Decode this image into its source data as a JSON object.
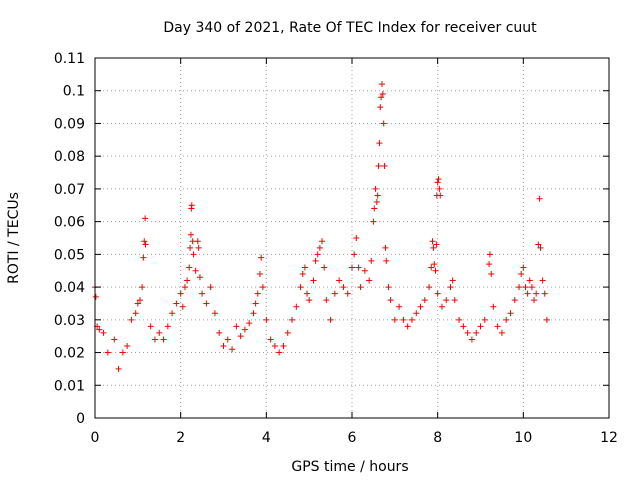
{
  "chart_data": {
    "type": "scatter",
    "title": "Day 340 of 2021, Rate Of TEC Index for receiver cuut",
    "xlabel": "GPS time / hours",
    "ylabel": "ROTI / TECUs",
    "xlim": [
      0,
      12
    ],
    "ylim": [
      0,
      0.11
    ],
    "xticks": [
      0,
      2,
      4,
      6,
      8,
      10,
      12
    ],
    "xtick_labels": [
      "0",
      "2",
      "4",
      "6",
      "8",
      "10",
      "12"
    ],
    "yticks": [
      0,
      0.01,
      0.02,
      0.03,
      0.04,
      0.05,
      0.06,
      0.07,
      0.08,
      0.09,
      0.1,
      0.11
    ],
    "ytick_labels": [
      "0",
      "0.01",
      "0.02",
      "0.03",
      "0.04",
      "0.05",
      "0.06",
      "0.07",
      "0.08",
      "0.09",
      "0.1",
      "0.11"
    ],
    "grid": true,
    "marker": "+",
    "color": "#ff0000",
    "series": [
      {
        "name": "ROTI",
        "points": [
          [
            0.0,
            0.04
          ],
          [
            0.02,
            0.037
          ],
          [
            0.05,
            0.028
          ],
          [
            0.1,
            0.027
          ],
          [
            0.2,
            0.026
          ],
          [
            0.3,
            0.02
          ],
          [
            0.45,
            0.024
          ],
          [
            0.55,
            0.015
          ],
          [
            0.65,
            0.02
          ],
          [
            0.75,
            0.022
          ],
          [
            0.85,
            0.03
          ],
          [
            0.95,
            0.032
          ],
          [
            1.0,
            0.035
          ],
          [
            1.05,
            0.036
          ],
          [
            1.1,
            0.04
          ],
          [
            1.13,
            0.049
          ],
          [
            1.15,
            0.054
          ],
          [
            1.17,
            0.061
          ],
          [
            1.18,
            0.053
          ],
          [
            1.3,
            0.028
          ],
          [
            1.4,
            0.024
          ],
          [
            1.5,
            0.026
          ],
          [
            1.6,
            0.024
          ],
          [
            1.7,
            0.028
          ],
          [
            1.8,
            0.032
          ],
          [
            1.9,
            0.035
          ],
          [
            2.0,
            0.038
          ],
          [
            2.05,
            0.034
          ],
          [
            2.1,
            0.04
          ],
          [
            2.15,
            0.042
          ],
          [
            2.2,
            0.046
          ],
          [
            2.22,
            0.052
          ],
          [
            2.24,
            0.056
          ],
          [
            2.25,
            0.064
          ],
          [
            2.26,
            0.065
          ],
          [
            2.28,
            0.054
          ],
          [
            2.3,
            0.05
          ],
          [
            2.35,
            0.045
          ],
          [
            2.4,
            0.054
          ],
          [
            2.42,
            0.052
          ],
          [
            2.45,
            0.043
          ],
          [
            2.5,
            0.038
          ],
          [
            2.6,
            0.035
          ],
          [
            2.7,
            0.04
          ],
          [
            2.8,
            0.032
          ],
          [
            2.9,
            0.026
          ],
          [
            3.0,
            0.022
          ],
          [
            3.1,
            0.024
          ],
          [
            3.2,
            0.021
          ],
          [
            3.3,
            0.028
          ],
          [
            3.4,
            0.025
          ],
          [
            3.5,
            0.027
          ],
          [
            3.6,
            0.029
          ],
          [
            3.7,
            0.032
          ],
          [
            3.75,
            0.035
          ],
          [
            3.8,
            0.038
          ],
          [
            3.85,
            0.044
          ],
          [
            3.88,
            0.049
          ],
          [
            3.92,
            0.04
          ],
          [
            4.0,
            0.03
          ],
          [
            4.1,
            0.024
          ],
          [
            4.2,
            0.022
          ],
          [
            4.3,
            0.02
          ],
          [
            4.4,
            0.022
          ],
          [
            4.5,
            0.026
          ],
          [
            4.6,
            0.03
          ],
          [
            4.7,
            0.034
          ],
          [
            4.8,
            0.04
          ],
          [
            4.85,
            0.044
          ],
          [
            4.9,
            0.046
          ],
          [
            4.95,
            0.038
          ],
          [
            5.0,
            0.036
          ],
          [
            5.1,
            0.042
          ],
          [
            5.15,
            0.048
          ],
          [
            5.2,
            0.05
          ],
          [
            5.25,
            0.052
          ],
          [
            5.3,
            0.054
          ],
          [
            5.35,
            0.046
          ],
          [
            5.4,
            0.036
          ],
          [
            5.5,
            0.03
          ],
          [
            5.6,
            0.038
          ],
          [
            5.7,
            0.042
          ],
          [
            5.8,
            0.04
          ],
          [
            5.9,
            0.038
          ],
          [
            6.0,
            0.046
          ],
          [
            6.05,
            0.05
          ],
          [
            6.1,
            0.055
          ],
          [
            6.15,
            0.046
          ],
          [
            6.2,
            0.04
          ],
          [
            6.3,
            0.045
          ],
          [
            6.4,
            0.042
          ],
          [
            6.45,
            0.048
          ],
          [
            6.5,
            0.06
          ],
          [
            6.52,
            0.064
          ],
          [
            6.55,
            0.07
          ],
          [
            6.58,
            0.066
          ],
          [
            6.6,
            0.068
          ],
          [
            6.62,
            0.077
          ],
          [
            6.64,
            0.084
          ],
          [
            6.66,
            0.095
          ],
          [
            6.68,
            0.098
          ],
          [
            6.7,
            0.102
          ],
          [
            6.72,
            0.099
          ],
          [
            6.74,
            0.09
          ],
          [
            6.76,
            0.077
          ],
          [
            6.78,
            0.052
          ],
          [
            6.8,
            0.048
          ],
          [
            6.85,
            0.04
          ],
          [
            6.9,
            0.036
          ],
          [
            7.0,
            0.03
          ],
          [
            7.1,
            0.034
          ],
          [
            7.2,
            0.03
          ],
          [
            7.3,
            0.028
          ],
          [
            7.4,
            0.03
          ],
          [
            7.5,
            0.032
          ],
          [
            7.6,
            0.034
          ],
          [
            7.7,
            0.036
          ],
          [
            7.8,
            0.04
          ],
          [
            7.85,
            0.046
          ],
          [
            7.88,
            0.054
          ],
          [
            7.9,
            0.052
          ],
          [
            7.92,
            0.047
          ],
          [
            7.95,
            0.045
          ],
          [
            7.97,
            0.053
          ],
          [
            7.98,
            0.068
          ],
          [
            8.0,
            0.072
          ],
          [
            8.02,
            0.073
          ],
          [
            8.04,
            0.07
          ],
          [
            8.06,
            0.068
          ],
          [
            8.0,
            0.038
          ],
          [
            8.1,
            0.034
          ],
          [
            8.2,
            0.036
          ],
          [
            8.3,
            0.04
          ],
          [
            8.35,
            0.042
          ],
          [
            8.4,
            0.036
          ],
          [
            8.5,
            0.03
          ],
          [
            8.6,
            0.028
          ],
          [
            8.7,
            0.026
          ],
          [
            8.8,
            0.024
          ],
          [
            8.9,
            0.026
          ],
          [
            9.0,
            0.028
          ],
          [
            9.1,
            0.03
          ],
          [
            9.2,
            0.047
          ],
          [
            9.22,
            0.05
          ],
          [
            9.25,
            0.044
          ],
          [
            9.3,
            0.034
          ],
          [
            9.4,
            0.028
          ],
          [
            9.5,
            0.026
          ],
          [
            9.6,
            0.03
          ],
          [
            9.7,
            0.032
          ],
          [
            9.8,
            0.036
          ],
          [
            9.9,
            0.04
          ],
          [
            9.95,
            0.044
          ],
          [
            10.0,
            0.046
          ],
          [
            10.05,
            0.04
          ],
          [
            10.1,
            0.038
          ],
          [
            10.15,
            0.042
          ],
          [
            10.2,
            0.04
          ],
          [
            10.25,
            0.036
          ],
          [
            10.3,
            0.038
          ],
          [
            10.35,
            0.053
          ],
          [
            10.38,
            0.067
          ],
          [
            10.4,
            0.052
          ],
          [
            10.45,
            0.042
          ],
          [
            10.5,
            0.038
          ],
          [
            10.55,
            0.03
          ]
        ]
      }
    ]
  }
}
